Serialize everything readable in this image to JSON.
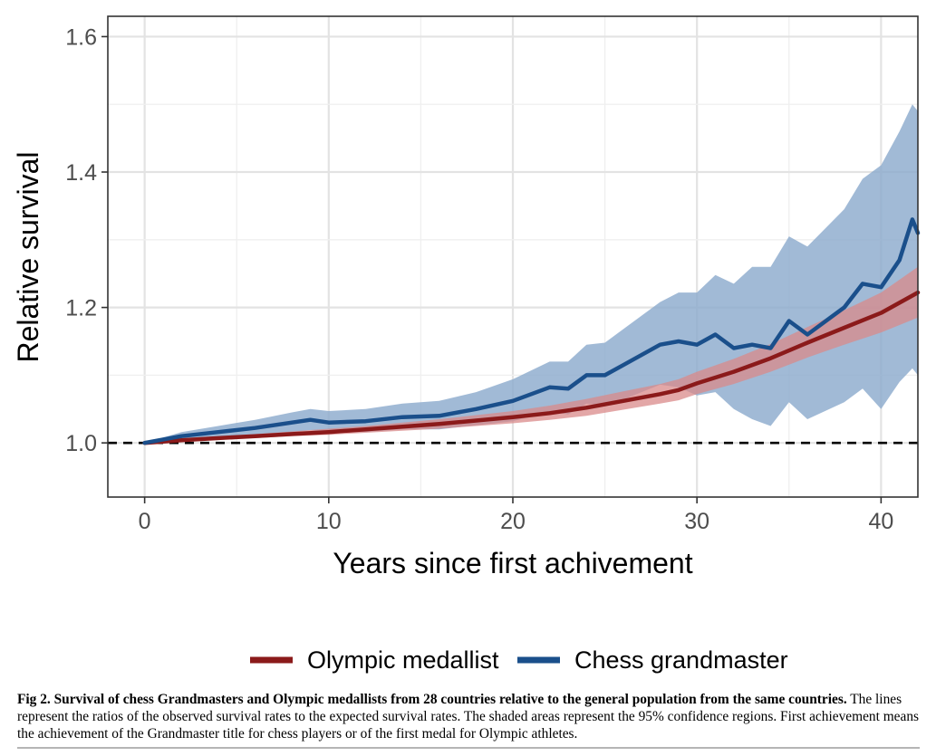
{
  "chart_data": {
    "type": "line",
    "xlabel": "Years since first achivement",
    "ylabel": "Relative survival",
    "xlim": [
      -2,
      42
    ],
    "ylim": [
      0.92,
      1.63
    ],
    "xticks": [
      "0",
      "10",
      "20",
      "30",
      "40"
    ],
    "yticks": [
      "1.0",
      "1.2",
      "1.4",
      "1.6"
    ],
    "reference_line": {
      "y": 1.0,
      "style": "dashed"
    },
    "grid": true,
    "legend_position": "bottom",
    "series": [
      {
        "name": "Olympic medallist",
        "color": "#8b1a1a",
        "band_color": "#d98a8a",
        "x": [
          0,
          2,
          4,
          6,
          8,
          10,
          12,
          14,
          16,
          18,
          20,
          22,
          24,
          26,
          28,
          29,
          30,
          32,
          34,
          36,
          38,
          40,
          42
        ],
        "y": [
          1.0,
          1.004,
          1.007,
          1.01,
          1.013,
          1.016,
          1.02,
          1.024,
          1.028,
          1.033,
          1.038,
          1.044,
          1.052,
          1.062,
          1.072,
          1.078,
          1.088,
          1.105,
          1.125,
          1.148,
          1.17,
          1.192,
          1.222
        ],
        "lower": [
          1.0,
          1.003,
          1.005,
          1.007,
          1.01,
          1.012,
          1.015,
          1.018,
          1.021,
          1.025,
          1.029,
          1.034,
          1.04,
          1.049,
          1.058,
          1.063,
          1.072,
          1.087,
          1.105,
          1.126,
          1.145,
          1.163,
          1.185
        ],
        "upper": [
          1.0,
          1.006,
          1.009,
          1.013,
          1.017,
          1.021,
          1.025,
          1.03,
          1.035,
          1.041,
          1.047,
          1.055,
          1.065,
          1.076,
          1.087,
          1.094,
          1.105,
          1.124,
          1.146,
          1.171,
          1.196,
          1.222,
          1.26
        ]
      },
      {
        "name": "Chess grandmaster",
        "color": "#1a4f8b",
        "band_color": "#8aa9cc",
        "x": [
          0,
          2,
          4,
          6,
          8,
          9,
          10,
          12,
          14,
          16,
          18,
          20,
          22,
          23,
          24,
          25,
          26,
          28,
          29,
          30,
          31,
          32,
          33,
          34,
          35,
          36,
          38,
          39,
          40,
          41,
          41.7,
          42
        ],
        "y": [
          1.0,
          1.01,
          1.016,
          1.022,
          1.03,
          1.034,
          1.03,
          1.032,
          1.038,
          1.04,
          1.05,
          1.062,
          1.082,
          1.08,
          1.1,
          1.1,
          1.115,
          1.145,
          1.15,
          1.145,
          1.16,
          1.14,
          1.145,
          1.14,
          1.18,
          1.16,
          1.2,
          1.235,
          1.23,
          1.27,
          1.33,
          1.31
        ],
        "lower": [
          1.0,
          1.005,
          1.008,
          1.012,
          1.016,
          1.019,
          1.015,
          1.016,
          1.02,
          1.02,
          1.026,
          1.032,
          1.046,
          1.042,
          1.058,
          1.055,
          1.064,
          1.086,
          1.082,
          1.07,
          1.075,
          1.05,
          1.035,
          1.025,
          1.06,
          1.035,
          1.06,
          1.08,
          1.05,
          1.09,
          1.11,
          1.1
        ],
        "upper": [
          1.0,
          1.016,
          1.025,
          1.034,
          1.045,
          1.05,
          1.047,
          1.05,
          1.058,
          1.062,
          1.075,
          1.094,
          1.12,
          1.12,
          1.145,
          1.148,
          1.168,
          1.208,
          1.222,
          1.222,
          1.248,
          1.235,
          1.26,
          1.26,
          1.305,
          1.29,
          1.345,
          1.39,
          1.41,
          1.46,
          1.5,
          1.49
        ]
      }
    ]
  },
  "caption": {
    "lead": "Fig 2. Survival of chess Grandmasters and Olympic medallists from 28 countries relative to the general population from the same countries.",
    "body": " The lines represent the ratios of the observed survival rates to the expected survival rates. The shaded areas represent the 95% confidence regions. First achievement means the achievement of the Grandmaster title for chess players or of the first medal for Olympic athletes."
  }
}
